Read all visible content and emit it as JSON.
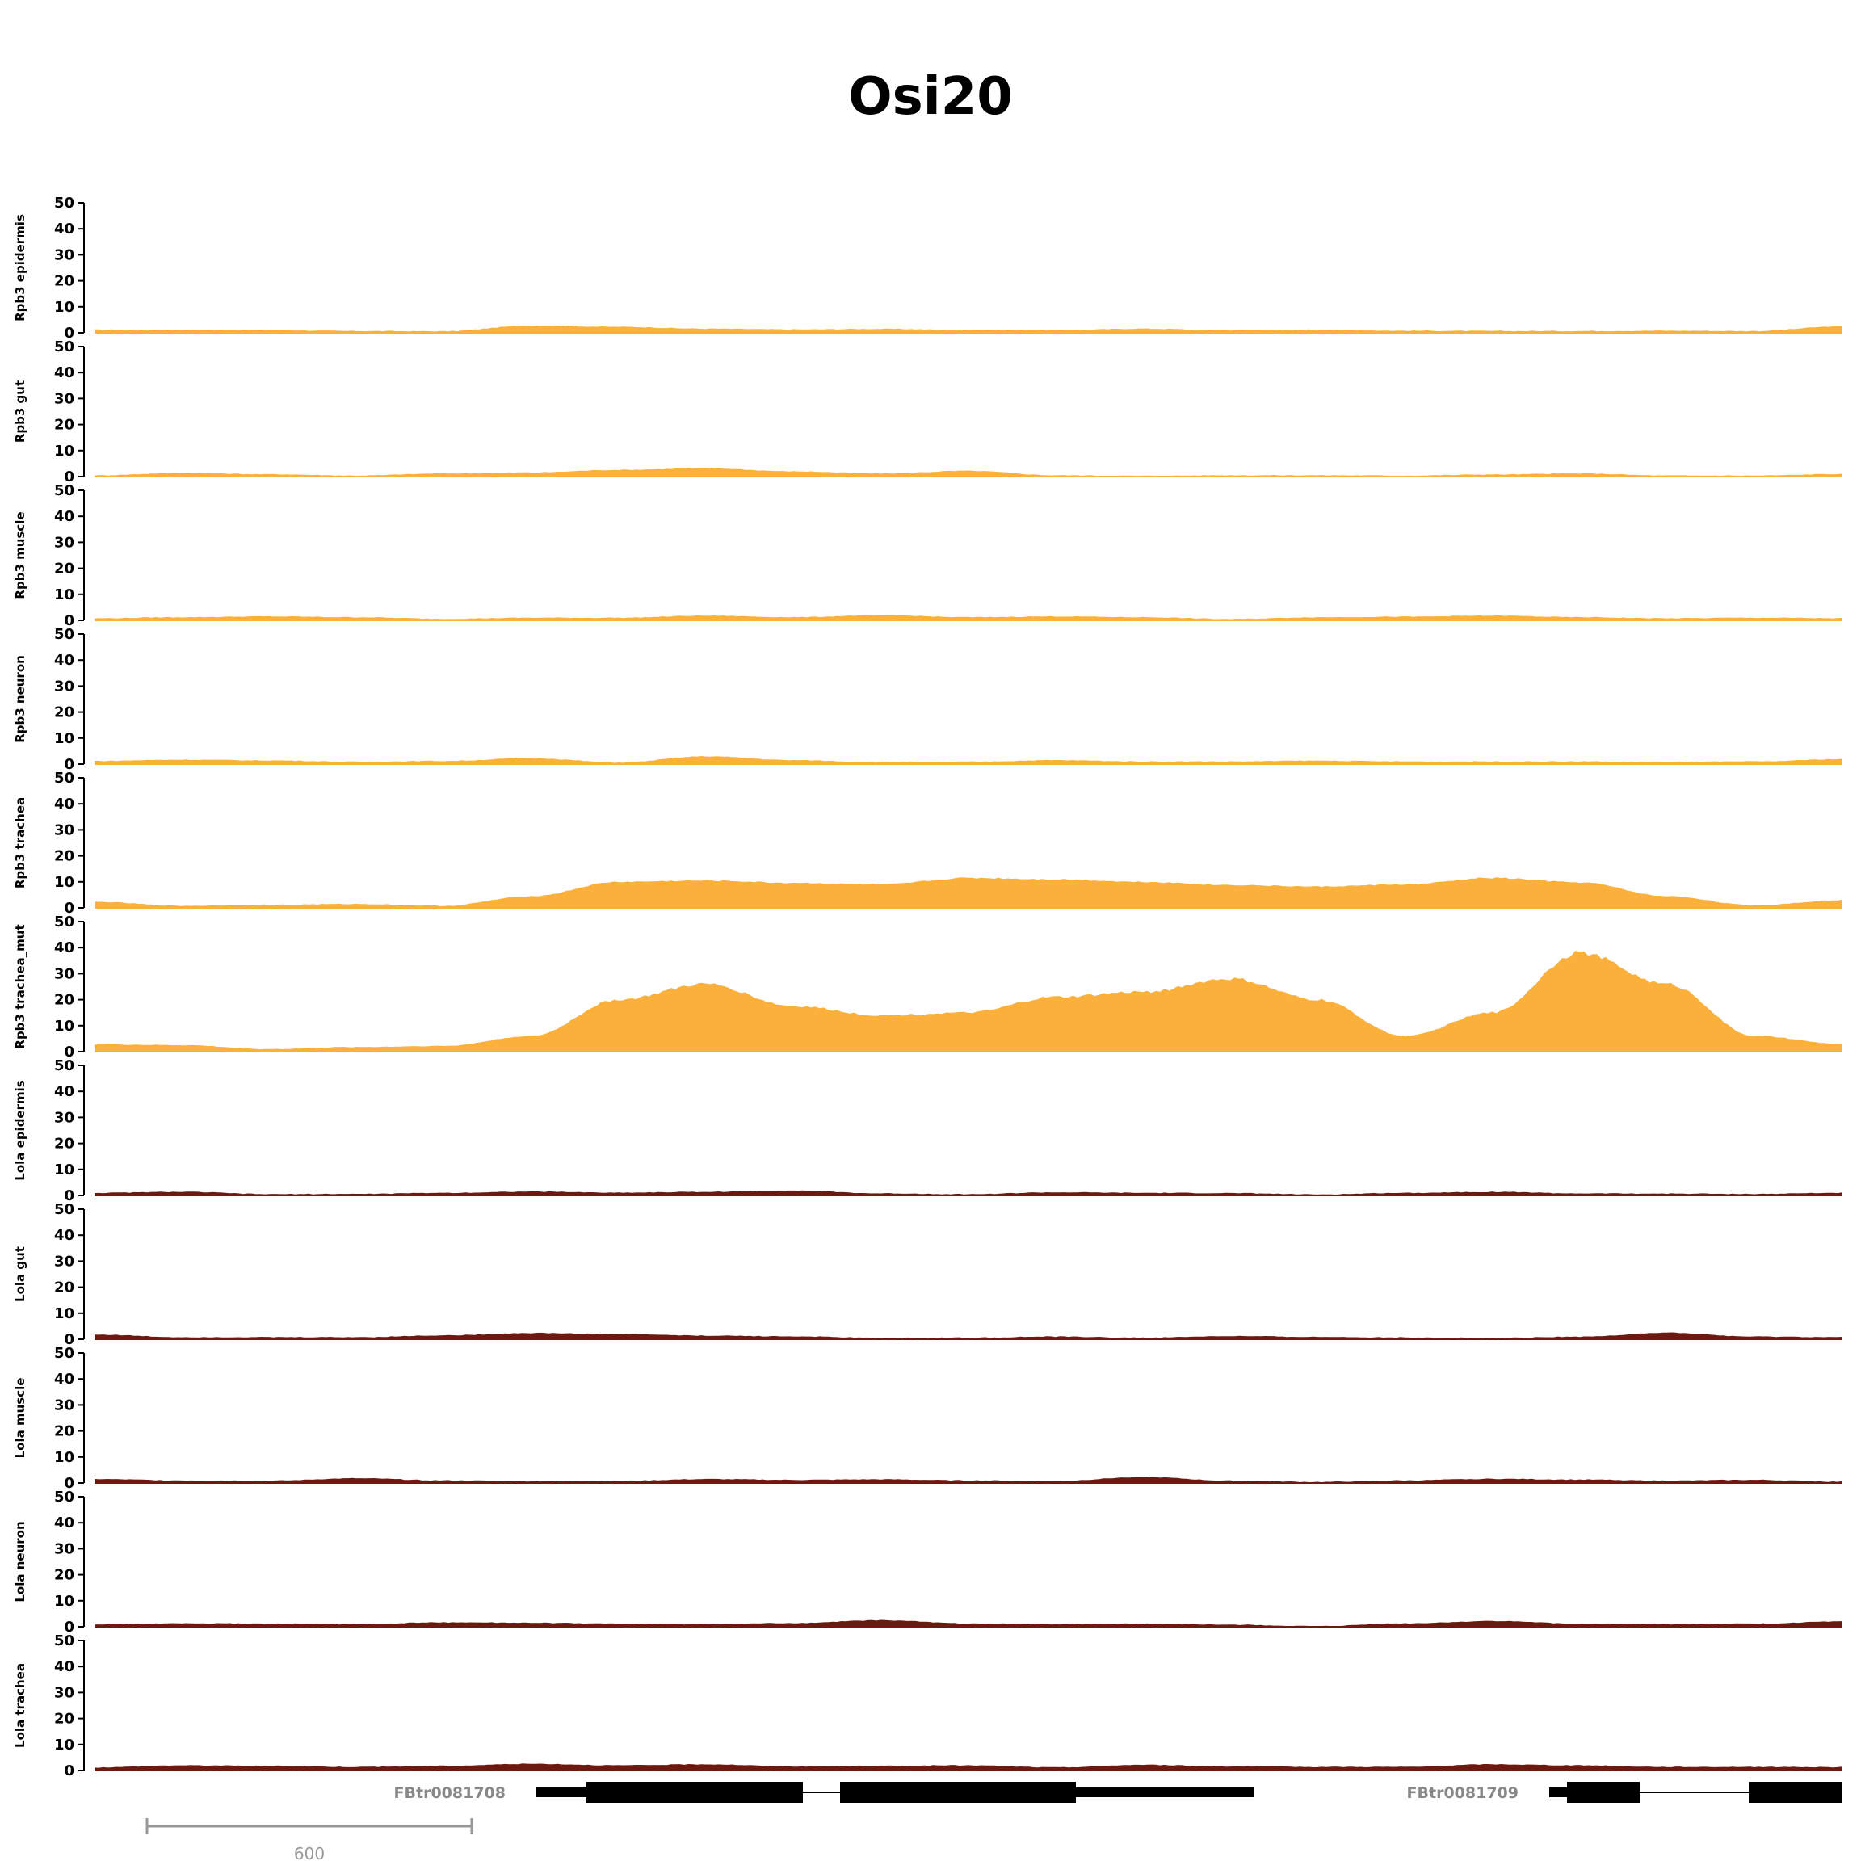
{
  "title": "Osi20",
  "colors": {
    "rpb3": "#FBB03B",
    "lola": "#6B1A12",
    "axis": "#000000",
    "gene": "#000000",
    "gene_label": "#888888",
    "scalebar": "#999999"
  },
  "chart_data": {
    "type": "area",
    "ylim": [
      0,
      50
    ],
    "yticks": [
      "0",
      "10",
      "20",
      "30",
      "40",
      "50"
    ],
    "x": [
      0,
      0.05,
      0.1,
      0.15,
      0.2,
      0.25,
      0.3,
      0.35,
      0.4,
      0.45,
      0.5,
      0.55,
      0.6,
      0.65,
      0.7,
      0.75,
      0.8,
      0.85,
      0.9,
      0.95,
      1.0
    ],
    "tracks": [
      {
        "name": "Rpb3 epidermis",
        "color": "rpb3",
        "values": [
          1.2,
          1.1,
          1.0,
          0.7,
          0.6,
          2.8,
          2.3,
          1.6,
          1.3,
          1.5,
          1.1,
          1.0,
          1.6,
          1.0,
          1.2,
          0.8,
          0.7,
          0.7,
          0.8,
          0.7,
          2.5
        ]
      },
      {
        "name": "Rpb3 gut",
        "color": "rpb3",
        "values": [
          0.5,
          1.4,
          0.9,
          0.4,
          1.2,
          1.6,
          2.6,
          3.2,
          2.0,
          1.2,
          2.2,
          0.5,
          0.3,
          0.5,
          0.5,
          0.4,
          0.8,
          1.2,
          0.4,
          0.4,
          1.0
        ]
      },
      {
        "name": "Rpb3 muscle",
        "color": "rpb3",
        "values": [
          0.8,
          1.2,
          1.5,
          1.2,
          0.6,
          1.0,
          1.0,
          1.8,
          1.2,
          2.0,
          1.2,
          1.5,
          1.2,
          0.5,
          1.2,
          1.4,
          1.8,
          1.2,
          0.8,
          1.0,
          0.8
        ]
      },
      {
        "name": "Rpb3 neuron",
        "color": "rpb3",
        "values": [
          1.2,
          1.7,
          1.4,
          0.9,
          1.2,
          2.3,
          0.6,
          3.0,
          1.5,
          0.7,
          0.9,
          1.5,
          1.0,
          1.0,
          1.3,
          1.0,
          1.0,
          1.0,
          0.8,
          1.0,
          1.9
        ]
      },
      {
        "name": "Rpb3 trachea",
        "color": "rpb3",
        "values": [
          2.3,
          0.8,
          1.2,
          1.5,
          0.8,
          4.5,
          10.0,
          10.5,
          9.6,
          9.0,
          11.5,
          11.0,
          10.0,
          8.8,
          8.2,
          9.0,
          11.5,
          9.8,
          4.5,
          1.0,
          3.0
        ]
      },
      {
        "name": "Rpb3 trachea_mut",
        "color": "rpb3",
        "values": [
          2.8,
          2.5,
          1.0,
          1.8,
          2.2,
          6.0,
          20.0,
          26.0,
          17.5,
          14.0,
          15.0,
          21.0,
          23.0,
          28.0,
          20.0,
          6.0,
          15.0,
          38.0,
          26.0,
          6.0,
          3.0
        ]
      },
      {
        "name": "Lola epidermis",
        "color": "lola",
        "values": [
          1.0,
          1.4,
          0.5,
          0.6,
          1.0,
          1.5,
          1.1,
          1.4,
          1.9,
          0.8,
          0.5,
          1.2,
          1.0,
          0.9,
          0.4,
          1.0,
          1.4,
          0.8,
          0.7,
          0.6,
          1.0
        ]
      },
      {
        "name": "Lola gut",
        "color": "lola",
        "values": [
          1.8,
          0.8,
          0.8,
          0.8,
          1.5,
          2.4,
          2.0,
          1.4,
          1.1,
          0.5,
          0.6,
          1.0,
          0.6,
          1.2,
          0.9,
          0.7,
          0.5,
          1.0,
          2.5,
          1.0,
          0.8
        ]
      },
      {
        "name": "Lola muscle",
        "color": "lola",
        "values": [
          1.5,
          1.0,
          0.9,
          1.8,
          1.0,
          0.7,
          0.8,
          1.5,
          1.2,
          1.4,
          1.0,
          0.8,
          2.3,
          0.9,
          0.4,
          1.0,
          1.6,
          1.3,
          0.9,
          1.2,
          0.5
        ]
      },
      {
        "name": "Lola neuron",
        "color": "lola",
        "values": [
          1.0,
          1.3,
          1.2,
          1.0,
          1.7,
          1.5,
          1.2,
          1.0,
          1.4,
          2.5,
          1.3,
          1.0,
          1.2,
          0.8,
          0.2,
          1.3,
          2.2,
          1.2,
          1.0,
          1.2,
          2.0
        ]
      },
      {
        "name": "Lola trachea",
        "color": "lola",
        "values": [
          1.2,
          2.0,
          1.8,
          1.4,
          1.8,
          2.6,
          2.0,
          2.4,
          1.6,
          1.8,
          2.0,
          1.2,
          2.2,
          1.6,
          1.4,
          1.4,
          2.4,
          2.0,
          1.4,
          1.4,
          1.3
        ]
      }
    ]
  },
  "genes": [
    {
      "label": "FBtr0081708"
    },
    {
      "label": "FBtr0081709"
    }
  ],
  "scalebar": {
    "label": "600"
  }
}
